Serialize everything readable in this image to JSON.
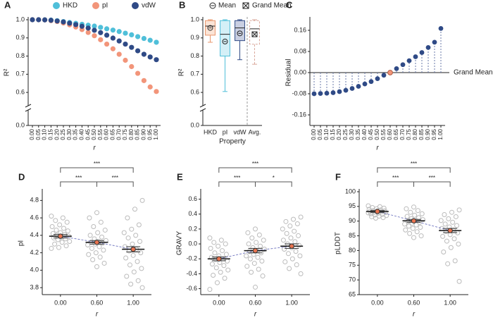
{
  "chart_data": [
    {
      "type": "scatter",
      "label": "A",
      "ylabel": "R²",
      "xlabel": "r",
      "categories": [
        "0.00",
        "0.05",
        "0.10",
        "0.15",
        "0.20",
        "0.25",
        "0.30",
        "0.35",
        "0.40",
        "0.45",
        "0.50",
        "0.55",
        "0.60",
        "0.65",
        "0.70",
        "0.75",
        "0.80",
        "0.85",
        "0.90",
        "0.95",
        "1.00"
      ],
      "series": [
        {
          "name": "HKD",
          "color": "#4fbfd9",
          "values": [
            1.0,
            1.0,
            1.0,
            0.998,
            0.995,
            0.99,
            0.985,
            0.98,
            0.975,
            0.97,
            0.965,
            0.958,
            0.95,
            0.943,
            0.935,
            0.926,
            0.917,
            0.907,
            0.897,
            0.887,
            0.876
          ]
        },
        {
          "name": "pI",
          "color": "#f2957a",
          "values": [
            1.0,
            1.0,
            0.999,
            0.995,
            0.99,
            0.982,
            0.972,
            0.96,
            0.946,
            0.93,
            0.912,
            0.89,
            0.866,
            0.84,
            0.81,
            0.777,
            0.742,
            0.705,
            0.665,
            0.63,
            0.605
          ]
        },
        {
          "name": "vdW",
          "color": "#2f4a86",
          "values": [
            1.0,
            1.0,
            0.999,
            0.997,
            0.993,
            0.988,
            0.981,
            0.973,
            0.964,
            0.954,
            0.942,
            0.929,
            0.915,
            0.899,
            0.883,
            0.866,
            0.848,
            0.829,
            0.81,
            0.795,
            0.78
          ]
        }
      ],
      "ylim": [
        0.0,
        1.0
      ],
      "axis_break": [
        0.1,
        0.55
      ],
      "yticks": [
        {
          "value": 0,
          "label": "0.0"
        },
        0.6,
        0.7,
        0.8,
        0.9,
        {
          "value": 1,
          "label": "1.0"
        }
      ]
    },
    {
      "type": "box",
      "label": "B",
      "ylabel": "R²",
      "xlabel": "Property",
      "categories": [
        "HKD",
        "pI",
        "vdW",
        "Avg."
      ],
      "colors": [
        "#e8956a",
        "#4fbfd9",
        "#2f4a86",
        "#d9a79a"
      ],
      "fills": [
        "#fbe4d6",
        "#d4f0f7",
        "#c9cfe2",
        "#ffffff"
      ],
      "legend": [
        "Mean",
        "Grand Mean"
      ],
      "boxes": [
        {
          "min": 0.876,
          "q1": 0.915,
          "median": 0.965,
          "q3": 0.995,
          "max": 1.0,
          "mean": 0.955
        },
        {
          "min": 0.605,
          "q1": 0.8,
          "median": 0.92,
          "q3": 0.995,
          "max": 1.0,
          "mean": 0.88
        },
        {
          "min": 0.78,
          "q1": 0.885,
          "median": 0.955,
          "q3": 0.995,
          "max": 1.0,
          "mean": 0.925
        },
        {
          "min": 0.755,
          "q1": 0.865,
          "median": 0.95,
          "q3": 0.995,
          "max": 1.0,
          "mean": 0.92
        }
      ],
      "ylim": [
        0.0,
        1.0
      ],
      "axis_break": [
        0.1,
        0.55
      ],
      "yticks": [
        {
          "value": 0,
          "label": "0.0"
        },
        0.6,
        0.7,
        0.8,
        0.9,
        {
          "value": 1,
          "label": "1.0"
        }
      ]
    },
    {
      "type": "lollipop",
      "label": "C",
      "ylabel": "Residual",
      "xlabel": "r",
      "annotation": "Grand Mean",
      "color": "#2f4a86",
      "highlight": "0.60",
      "highlight_color": "#f2957a",
      "categories": [
        "0.00",
        "0.05",
        "0.10",
        "0.15",
        "0.20",
        "0.25",
        "0.30",
        "0.35",
        "0.40",
        "0.45",
        "0.50",
        "0.55",
        "0.60",
        "0.65",
        "0.70",
        "0.75",
        "0.80",
        "0.85",
        "0.90",
        "0.95",
        "1.00"
      ],
      "values": [
        -0.08,
        -0.079,
        -0.078,
        -0.076,
        -0.072,
        -0.067,
        -0.06,
        -0.052,
        -0.043,
        -0.034,
        -0.023,
        -0.01,
        0.0,
        0.015,
        0.03,
        0.045,
        0.06,
        0.076,
        0.095,
        0.115,
        0.167
      ],
      "ylim": [
        -0.2,
        0.2
      ],
      "yticks": [
        -0.16,
        -0.08,
        {
          "value": 0,
          "label": "0.00"
        },
        0.08,
        0.16
      ]
    },
    {
      "type": "strip",
      "label": "D",
      "ylabel": "pI",
      "xlabel": "r",
      "categories": [
        "0.00",
        "0.60",
        "1.00"
      ],
      "significance": [
        "***",
        "***",
        "***"
      ],
      "groups": [
        {
          "mean": 4.39,
          "ci": 0.02,
          "points": [
            4.62,
            4.6,
            4.57,
            4.55,
            4.52,
            4.5,
            4.48,
            4.46,
            4.45,
            4.43,
            4.42,
            4.41,
            4.4,
            4.39,
            4.38,
            4.37,
            4.36,
            4.35,
            4.33,
            4.32,
            4.3,
            4.28,
            4.26,
            4.25
          ]
        },
        {
          "mean": 4.32,
          "ci": 0.02,
          "points": [
            4.66,
            4.6,
            4.55,
            4.5,
            4.46,
            4.43,
            4.4,
            4.38,
            4.36,
            4.34,
            4.33,
            4.32,
            4.31,
            4.3,
            4.29,
            4.27,
            4.25,
            4.23,
            4.2,
            4.18,
            4.15,
            4.12,
            4.08,
            4.04
          ]
        },
        {
          "mean": 4.24,
          "ci": 0.03,
          "points": [
            4.8,
            4.7,
            4.6,
            4.52,
            4.47,
            4.43,
            4.4,
            4.37,
            4.33,
            4.3,
            4.27,
            4.24,
            4.22,
            4.2,
            4.17,
            4.14,
            4.1,
            4.06,
            4.02,
            3.98,
            3.93,
            3.88,
            3.84,
            3.8
          ]
        }
      ],
      "ylim": [
        3.72,
        4.9
      ],
      "yticks": [
        3.8,
        {
          "value": 4,
          "label": "4.0"
        },
        4.2,
        4.4,
        4.6,
        4.8
      ]
    },
    {
      "type": "strip",
      "label": "E",
      "ylabel": "GRAVY",
      "xlabel": "r",
      "categories": [
        "0.00",
        "0.60",
        "1.00"
      ],
      "significance": [
        "***",
        "***",
        "*"
      ],
      "groups": [
        {
          "mean": -0.2,
          "ci": 0.025,
          "points": [
            0.08,
            0.05,
            0.02,
            0.0,
            -0.03,
            -0.06,
            -0.09,
            -0.12,
            -0.14,
            -0.16,
            -0.18,
            -0.2,
            -0.21,
            -0.23,
            -0.25,
            -0.27,
            -0.29,
            -0.32,
            -0.35,
            -0.38,
            -0.42,
            -0.46,
            -0.52,
            -0.61
          ]
        },
        {
          "mean": -0.09,
          "ci": 0.03,
          "points": [
            0.2,
            0.15,
            0.12,
            0.08,
            0.05,
            0.02,
            0.0,
            -0.03,
            -0.05,
            -0.07,
            -0.09,
            -0.1,
            -0.12,
            -0.14,
            -0.16,
            -0.18,
            -0.2,
            -0.23,
            -0.26,
            -0.3,
            -0.34,
            -0.38,
            -0.43,
            -0.58
          ]
        },
        {
          "mean": -0.03,
          "ci": 0.03,
          "points": [
            0.36,
            0.33,
            0.3,
            0.27,
            0.24,
            0.2,
            0.17,
            0.14,
            0.11,
            0.08,
            0.05,
            0.03,
            0.0,
            -0.02,
            -0.05,
            -0.07,
            -0.1,
            -0.13,
            -0.16,
            -0.2,
            -0.24,
            -0.28,
            -0.33,
            -0.4
          ]
        }
      ],
      "ylim": [
        -0.68,
        0.7
      ],
      "yticks": [
        -0.6,
        -0.4,
        -0.2,
        {
          "value": 0,
          "label": "0.0"
        },
        0.2,
        0.4,
        0.6
      ]
    },
    {
      "type": "strip",
      "label": "F",
      "ylabel": "pLDDT",
      "xlabel": "r",
      "categories": [
        "0.00",
        "0.60",
        "1.00"
      ],
      "significance": [
        "***",
        "***",
        "***"
      ],
      "groups": [
        {
          "mean": 93.3,
          "ci": 0.3,
          "points": [
            95.2,
            94.9,
            94.6,
            94.4,
            94.2,
            94,
            93.8,
            93.6,
            93.5,
            93.4,
            93.3,
            93.2,
            93,
            92.9,
            92.7,
            92.5,
            92.3,
            92.1,
            91.9,
            91.7,
            91.5,
            91.2,
            91,
            92.8
          ]
        },
        {
          "mean": 90.1,
          "ci": 0.5,
          "points": [
            94.8,
            94.2,
            93.6,
            93,
            92.5,
            92,
            91.6,
            91.2,
            90.8,
            90.5,
            90.2,
            89.9,
            89.6,
            89.3,
            89,
            88.7,
            88.3,
            87.9,
            87.5,
            87,
            86.4,
            85.8,
            85,
            84.4
          ]
        },
        {
          "mean": 86.8,
          "ci": 0.7,
          "points": [
            93.8,
            93,
            92.2,
            91.5,
            90.8,
            90.2,
            89.6,
            89,
            88.5,
            88,
            87.5,
            87,
            86.5,
            86,
            85.4,
            84.8,
            84,
            83.2,
            82.2,
            81,
            79.5,
            76.5,
            75.5,
            69.5
          ]
        }
      ],
      "ylim": [
        65,
        100
      ],
      "yticks": [
        65,
        70,
        75,
        80,
        85,
        90,
        95,
        100
      ]
    }
  ]
}
